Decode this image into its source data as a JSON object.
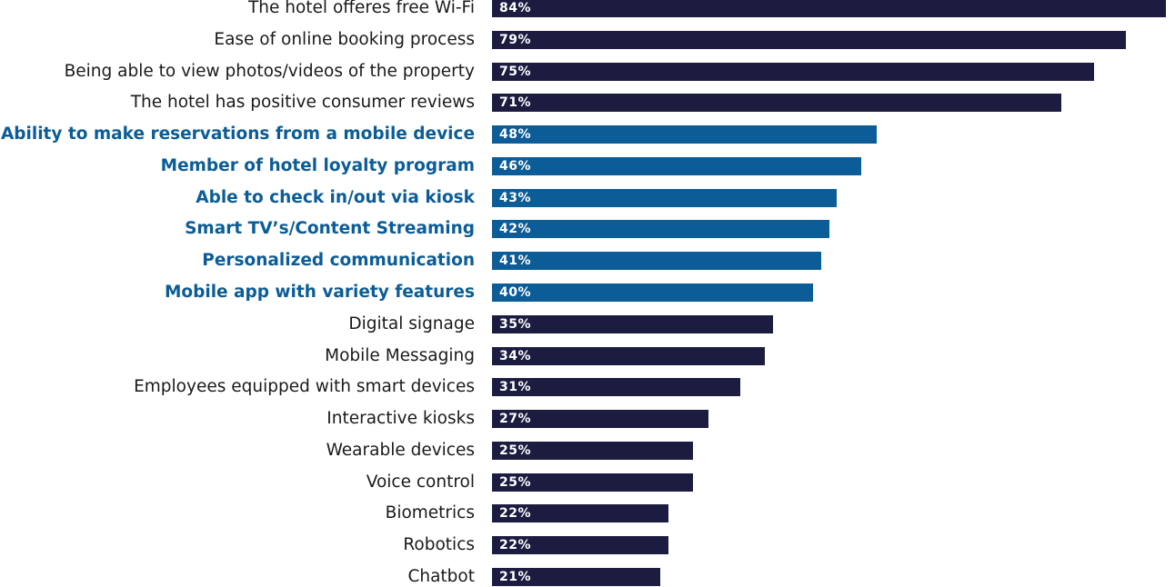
{
  "chart_data": {
    "type": "bar",
    "orientation": "horizontal",
    "title": "",
    "xlabel": "",
    "ylabel": "",
    "xlim": [
      0,
      84
    ],
    "grid": false,
    "value_suffix": "%",
    "colors": {
      "default": "#1b1c40",
      "highlight": "#0b5c97"
    },
    "categories": [
      "The hotel offeres free Wi-Fi",
      "Ease of online booking process",
      "Being able to view photos/videos of the property",
      "The hotel has positive consumer reviews",
      "Ability to make reservations from a mobile device",
      "Member of hotel loyalty program",
      "Able to check in/out via kiosk",
      "Smart TV’s/Content Streaming",
      "Personalized communication",
      "Mobile app with variety features",
      "Digital signage",
      "Mobile Messaging",
      "Employees equipped with smart devices",
      "Interactive kiosks",
      "Wearable devices",
      "Voice control",
      "Biometrics",
      "Robotics",
      "Chatbot"
    ],
    "values": [
      84,
      79,
      75,
      71,
      48,
      46,
      43,
      42,
      41,
      40,
      35,
      34,
      31,
      27,
      25,
      25,
      22,
      22,
      21
    ],
    "data_labels": [
      "84%",
      "79%",
      "75%",
      "71%",
      "48%",
      "46%",
      "43%",
      "42%",
      "41%",
      "40%",
      "35%",
      "34%",
      "31%",
      "27%",
      "25%",
      "25%",
      "22%",
      "22%",
      "21%"
    ],
    "highlighted": [
      false,
      false,
      false,
      false,
      true,
      true,
      true,
      true,
      true,
      true,
      false,
      false,
      false,
      false,
      false,
      false,
      false,
      false,
      false
    ]
  }
}
